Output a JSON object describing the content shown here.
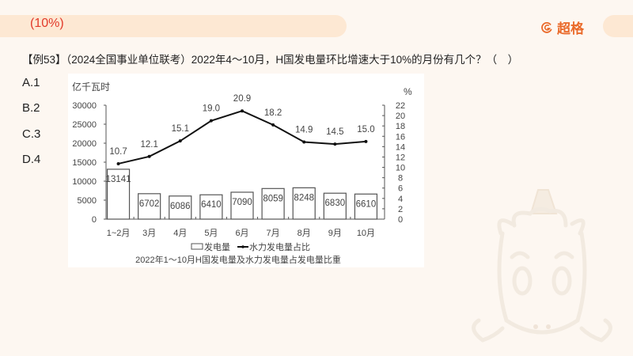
{
  "header": {
    "highlight_text": "(10%)",
    "brand_name": "超格",
    "brand_icon": "g-logo-icon"
  },
  "question": {
    "text": "【例53】（2024全国事业单位联考）2022年4～10月，H国发电量环比增速大于10%的月份有几个？（　）",
    "options": [
      {
        "label": "A.1"
      },
      {
        "label": "B.2"
      },
      {
        "label": "C.3"
      },
      {
        "label": "D.4"
      }
    ]
  },
  "chart_data": {
    "type": "bar+line",
    "title": "2022年1～10月H国发电量及水力发电量占发电量比重",
    "categories": [
      "1~2月",
      "3月",
      "4月",
      "5月",
      "6月",
      "7月",
      "8月",
      "9月",
      "10月"
    ],
    "series": [
      {
        "name": "发电量",
        "type": "bar",
        "axis": "left",
        "values": [
          13141,
          6702,
          6086,
          6410,
          7090,
          8059,
          8248,
          6830,
          6610
        ]
      },
      {
        "name": "水力发电量占比",
        "type": "line",
        "axis": "right",
        "values": [
          10.7,
          12.1,
          15.1,
          19.0,
          20.9,
          18.2,
          14.9,
          14.5,
          15.0
        ]
      }
    ],
    "ylabel_left": "亿千瓦时",
    "ylabel_right": "%",
    "ylim_left": [
      0,
      30000
    ],
    "yticks_left": [
      0,
      5000,
      10000,
      15000,
      20000,
      25000,
      30000
    ],
    "ylim_right": [
      0,
      22
    ],
    "yticks_right": [
      0,
      2,
      4,
      6,
      8,
      10,
      12,
      14,
      16,
      18,
      20,
      22
    ],
    "legend": [
      "发电量",
      "水力发电量占比"
    ],
    "legend_position": "bottom",
    "grid": false
  },
  "decor": {
    "mascot": "unicorn-mascot-watermark"
  }
}
